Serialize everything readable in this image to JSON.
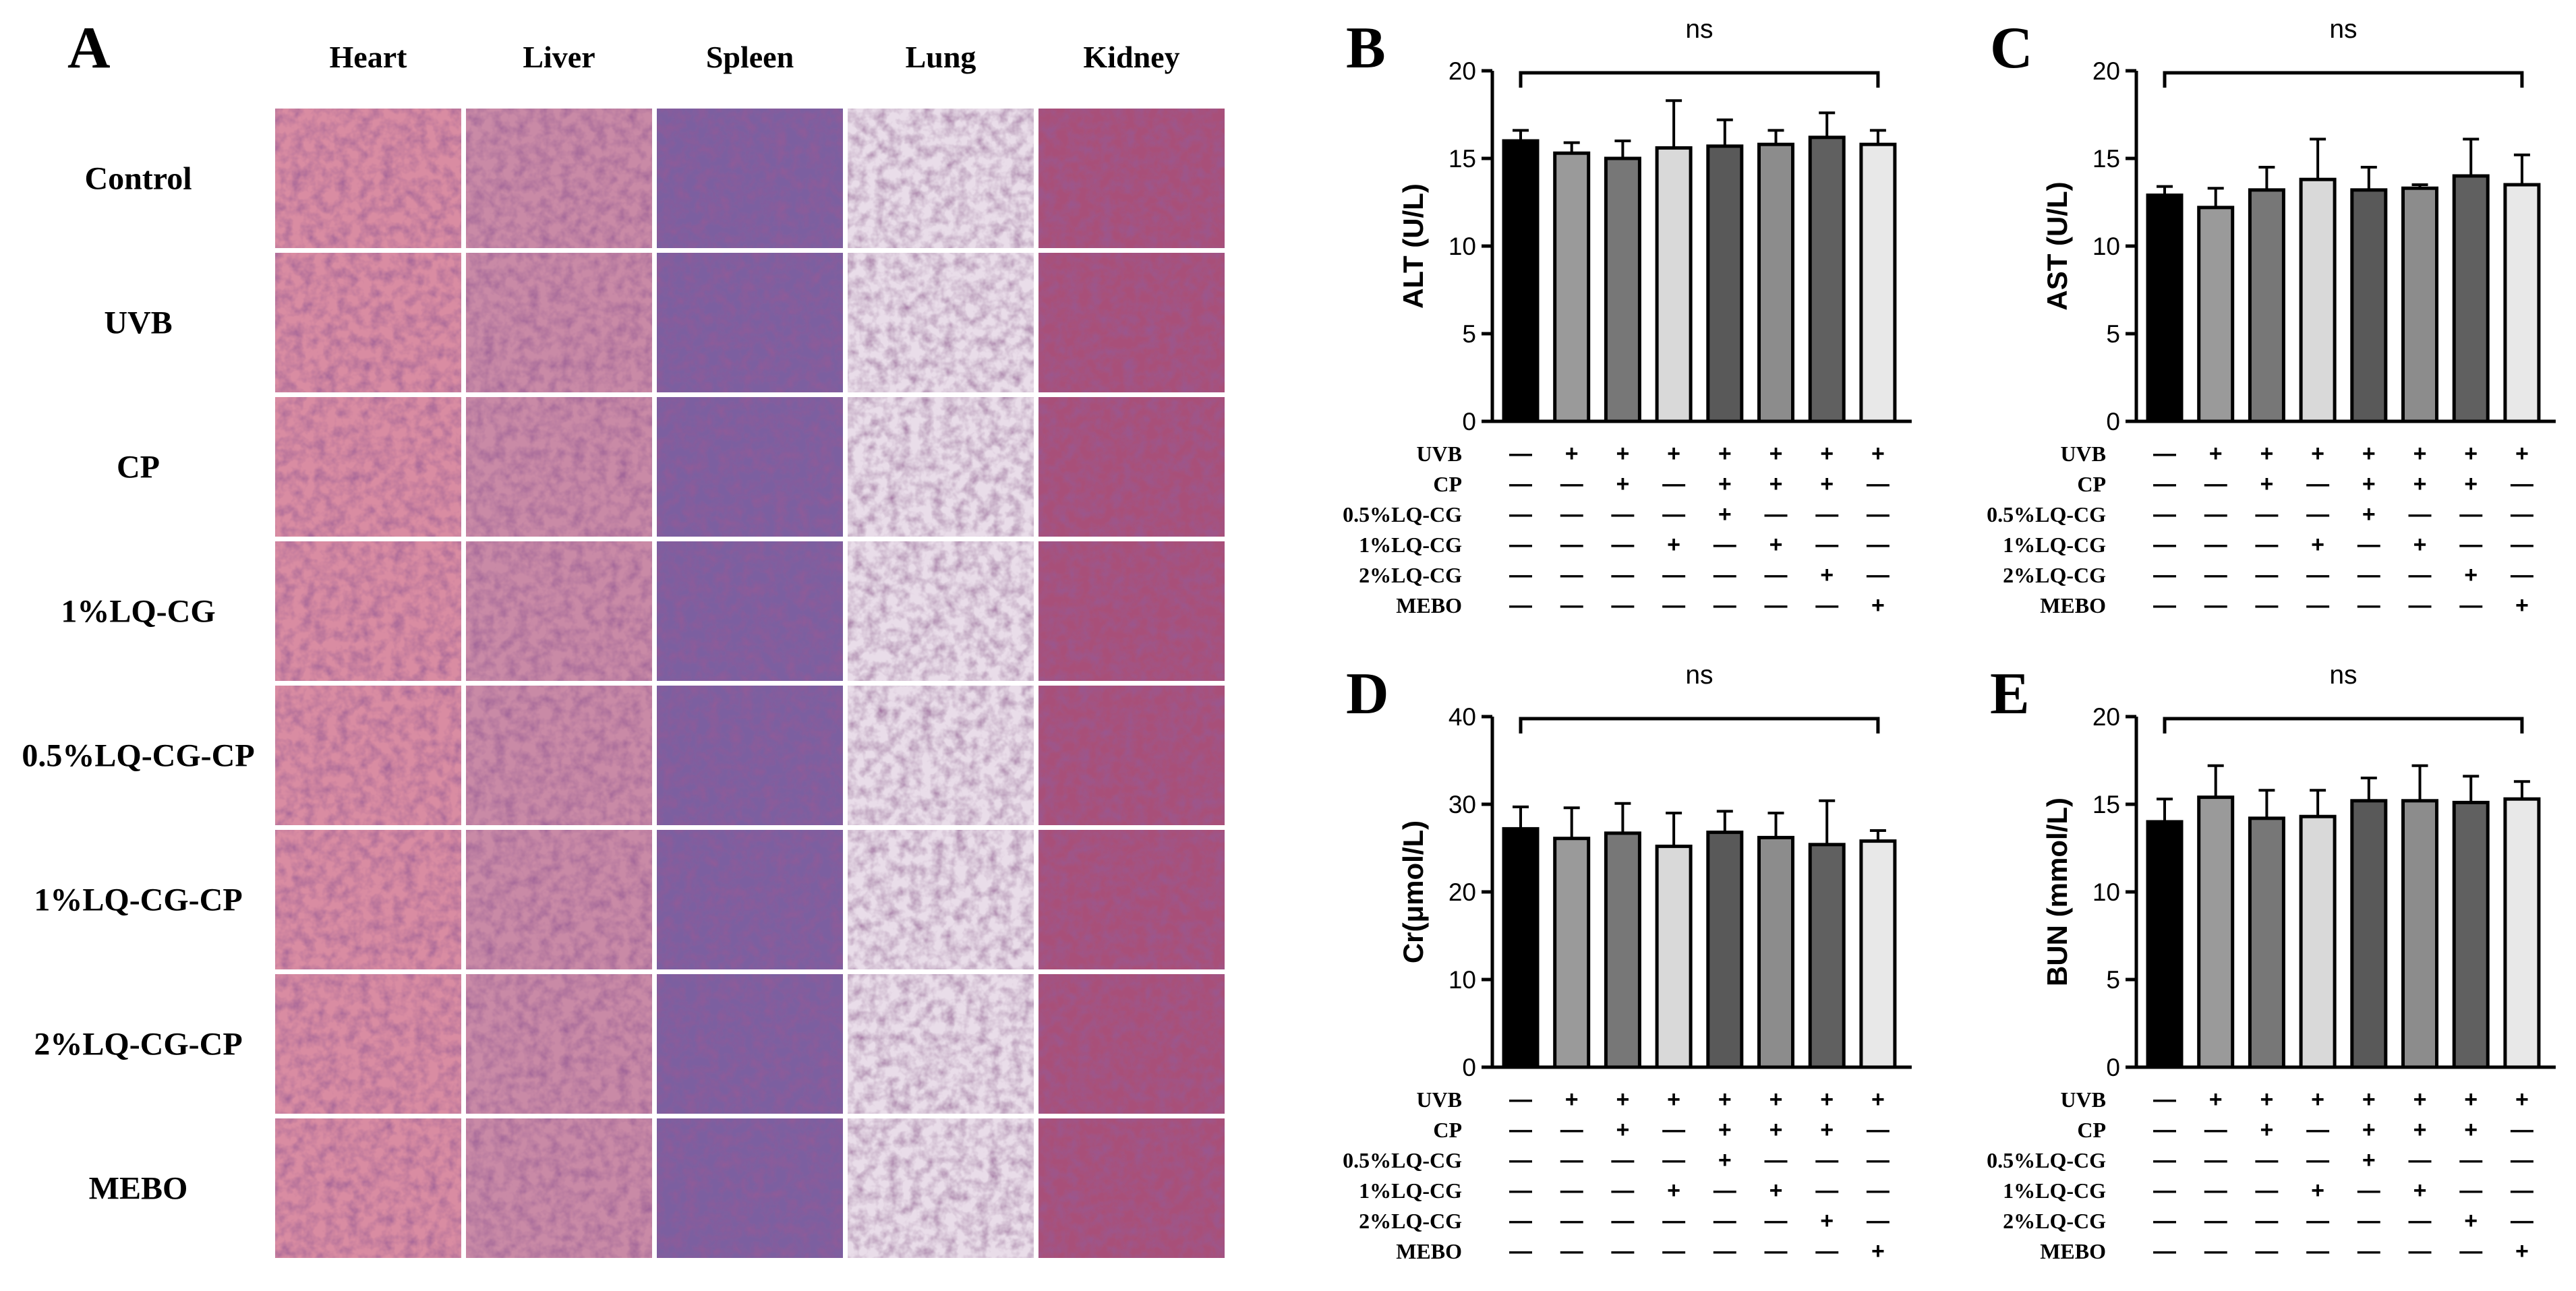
{
  "panel_a": {
    "label": "A",
    "columns": [
      "Heart",
      "Liver",
      "Spleen",
      "Lung",
      "Kidney"
    ],
    "rows": [
      "Control",
      "UVB",
      "CP",
      "1%LQ-CG",
      "0.5%LQ-CG-CP",
      "1%LQ-CG-CP",
      "2%LQ-CG-CP",
      "MEBO"
    ]
  },
  "chart_data": [
    {
      "type": "bar",
      "panel_label": "B",
      "y_label": "ALT (U/L)",
      "annotation": "ns",
      "values": [
        16.0,
        15.3,
        15.0,
        15.6,
        15.7,
        15.8,
        16.2,
        15.8
      ],
      "errors": [
        0.6,
        0.6,
        1.0,
        2.7,
        1.5,
        0.8,
        1.4,
        0.8
      ],
      "colors": [
        "#000000",
        "#9a9a9a",
        "#777777",
        "#d9d9d9",
        "#595959",
        "#8c8c8c",
        "#606060",
        "#e8e8e8"
      ],
      "ylim": [
        0,
        20
      ],
      "yticks": [
        0,
        5,
        10,
        15,
        20
      ],
      "conditions": [
        {
          "name": "UVB",
          "marks": [
            "—",
            "+",
            "+",
            "+",
            "+",
            "+",
            "+",
            "+"
          ]
        },
        {
          "name": "CP",
          "marks": [
            "—",
            "—",
            "+",
            "—",
            "+",
            "+",
            "+",
            "—"
          ]
        },
        {
          "name": "0.5%LQ-CG",
          "marks": [
            "—",
            "—",
            "—",
            "—",
            "+",
            "—",
            "—",
            "—"
          ]
        },
        {
          "name": "1%LQ-CG",
          "marks": [
            "—",
            "—",
            "—",
            "+",
            "—",
            "+",
            "—",
            "—"
          ]
        },
        {
          "name": "2%LQ-CG",
          "marks": [
            "—",
            "—",
            "—",
            "—",
            "—",
            "—",
            "+",
            "—"
          ]
        },
        {
          "name": "MEBO",
          "marks": [
            "—",
            "—",
            "—",
            "—",
            "—",
            "—",
            "—",
            "+"
          ]
        }
      ]
    },
    {
      "type": "bar",
      "panel_label": "C",
      "y_label": "AST (U/L)",
      "annotation": "ns",
      "values": [
        12.9,
        12.2,
        13.2,
        13.8,
        13.2,
        13.3,
        14.0,
        13.5
      ],
      "errors": [
        0.5,
        1.1,
        1.3,
        2.3,
        1.3,
        0.2,
        2.1,
        1.7
      ],
      "colors": [
        "#000000",
        "#9a9a9a",
        "#777777",
        "#d9d9d9",
        "#595959",
        "#8c8c8c",
        "#606060",
        "#e8e8e8"
      ],
      "ylim": [
        0,
        20
      ],
      "yticks": [
        0,
        5,
        10,
        15,
        20
      ],
      "conditions": [
        {
          "name": "UVB",
          "marks": [
            "—",
            "+",
            "+",
            "+",
            "+",
            "+",
            "+",
            "+"
          ]
        },
        {
          "name": "CP",
          "marks": [
            "—",
            "—",
            "+",
            "—",
            "+",
            "+",
            "+",
            "—"
          ]
        },
        {
          "name": "0.5%LQ-CG",
          "marks": [
            "—",
            "—",
            "—",
            "—",
            "+",
            "—",
            "—",
            "—"
          ]
        },
        {
          "name": "1%LQ-CG",
          "marks": [
            "—",
            "—",
            "—",
            "+",
            "—",
            "+",
            "—",
            "—"
          ]
        },
        {
          "name": "2%LQ-CG",
          "marks": [
            "—",
            "—",
            "—",
            "—",
            "—",
            "—",
            "+",
            "—"
          ]
        },
        {
          "name": "MEBO",
          "marks": [
            "—",
            "—",
            "—",
            "—",
            "—",
            "—",
            "—",
            "+"
          ]
        }
      ]
    },
    {
      "type": "bar",
      "panel_label": "D",
      "y_label": "Cr(μmol/L)",
      "annotation": "ns",
      "values": [
        27.2,
        26.1,
        26.7,
        25.2,
        26.8,
        26.2,
        25.4,
        25.8
      ],
      "errors": [
        2.5,
        3.5,
        3.4,
        3.8,
        2.4,
        2.8,
        5.0,
        1.2
      ],
      "colors": [
        "#000000",
        "#9a9a9a",
        "#777777",
        "#d9d9d9",
        "#595959",
        "#8c8c8c",
        "#606060",
        "#e8e8e8"
      ],
      "ylim": [
        0,
        40
      ],
      "yticks": [
        0,
        10,
        20,
        30,
        40
      ],
      "conditions": [
        {
          "name": "UVB",
          "marks": [
            "—",
            "+",
            "+",
            "+",
            "+",
            "+",
            "+",
            "+"
          ]
        },
        {
          "name": "CP",
          "marks": [
            "—",
            "—",
            "+",
            "—",
            "+",
            "+",
            "+",
            "—"
          ]
        },
        {
          "name": "0.5%LQ-CG",
          "marks": [
            "—",
            "—",
            "—",
            "—",
            "+",
            "—",
            "—",
            "—"
          ]
        },
        {
          "name": "1%LQ-CG",
          "marks": [
            "—",
            "—",
            "—",
            "+",
            "—",
            "+",
            "—",
            "—"
          ]
        },
        {
          "name": "2%LQ-CG",
          "marks": [
            "—",
            "—",
            "—",
            "—",
            "—",
            "—",
            "+",
            "—"
          ]
        },
        {
          "name": "MEBO",
          "marks": [
            "—",
            "—",
            "—",
            "—",
            "—",
            "—",
            "—",
            "+"
          ]
        }
      ]
    },
    {
      "type": "bar",
      "panel_label": "E",
      "y_label": "BUN (mmol/L)",
      "annotation": "ns",
      "values": [
        14.0,
        15.4,
        14.2,
        14.3,
        15.2,
        15.2,
        15.1,
        15.3
      ],
      "errors": [
        1.3,
        1.8,
        1.6,
        1.5,
        1.3,
        2.0,
        1.5,
        1.0
      ],
      "colors": [
        "#000000",
        "#9a9a9a",
        "#777777",
        "#d9d9d9",
        "#595959",
        "#8c8c8c",
        "#606060",
        "#e8e8e8"
      ],
      "ylim": [
        0,
        20
      ],
      "yticks": [
        0,
        5,
        10,
        15,
        20
      ],
      "conditions": [
        {
          "name": "UVB",
          "marks": [
            "—",
            "+",
            "+",
            "+",
            "+",
            "+",
            "+",
            "+"
          ]
        },
        {
          "name": "CP",
          "marks": [
            "—",
            "—",
            "+",
            "—",
            "+",
            "+",
            "+",
            "—"
          ]
        },
        {
          "name": "0.5%LQ-CG",
          "marks": [
            "—",
            "—",
            "—",
            "—",
            "+",
            "—",
            "—",
            "—"
          ]
        },
        {
          "name": "1%LQ-CG",
          "marks": [
            "—",
            "—",
            "—",
            "+",
            "—",
            "+",
            "—",
            "—"
          ]
        },
        {
          "name": "2%LQ-CG",
          "marks": [
            "—",
            "—",
            "—",
            "—",
            "—",
            "—",
            "+",
            "—"
          ]
        },
        {
          "name": "MEBO",
          "marks": [
            "—",
            "—",
            "—",
            "—",
            "—",
            "—",
            "—",
            "+"
          ]
        }
      ]
    }
  ]
}
